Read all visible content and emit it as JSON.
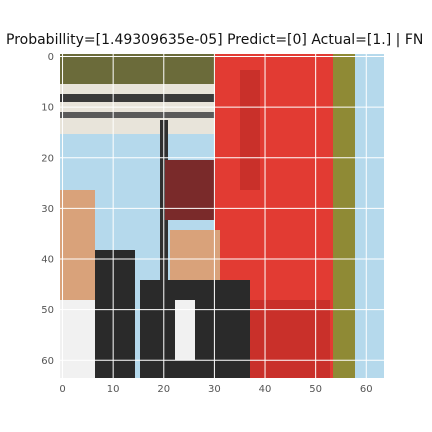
{
  "figure": {
    "title": "Probabillity=[1.49309635e-05] Predict=[0] Actual=[1.] | FN",
    "image_description_colors": {
      "sky": "#b5d9ec",
      "red": "#e23b33",
      "dark": "#2a2a2a",
      "skin": "#d9a27a",
      "olive": "#8f8a35",
      "white": "#f1f1f1"
    }
  },
  "axes": {
    "x_ticks": [
      "0",
      "10",
      "20",
      "30",
      "40",
      "50",
      "60"
    ],
    "y_ticks": [
      "0",
      "10",
      "20",
      "30",
      "40",
      "50",
      "60"
    ],
    "x_tick_values": [
      0,
      10,
      20,
      30,
      40,
      50,
      60
    ],
    "y_tick_values": [
      0,
      10,
      20,
      30,
      40,
      50,
      60
    ],
    "xlim": [
      -0.5,
      63.5
    ],
    "ylim": [
      63.5,
      -0.5
    ],
    "grid": true,
    "grid_color": "#ffffff",
    "tick_color": "#555555"
  }
}
